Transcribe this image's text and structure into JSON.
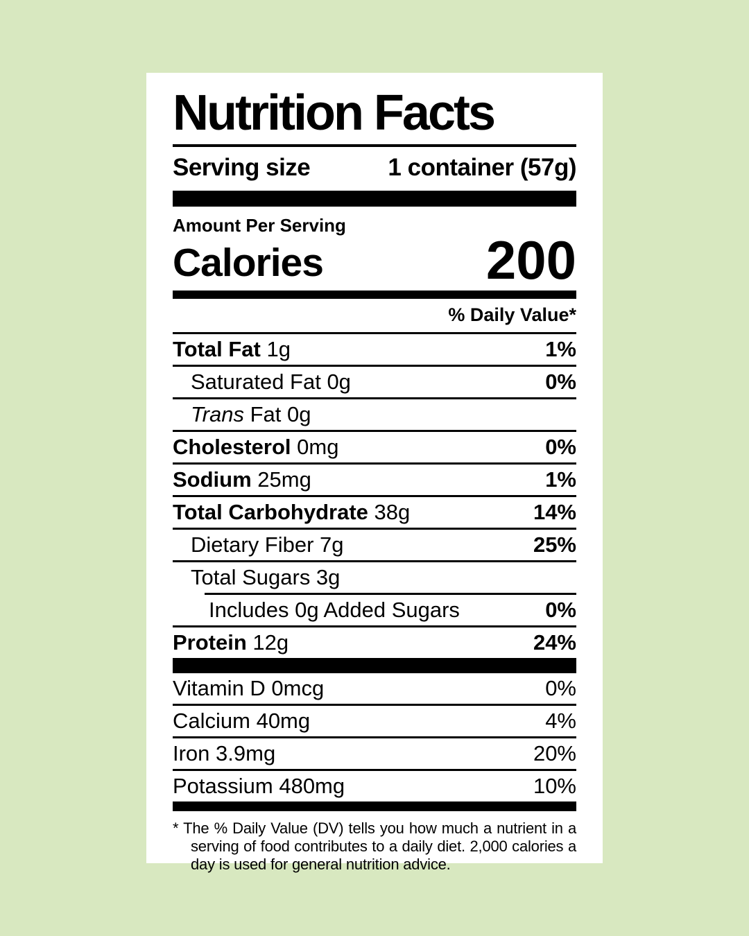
{
  "colors": {
    "background": "#d8e8c0",
    "card": "#ffffff",
    "text": "#000000"
  },
  "label": {
    "title": "Nutrition Facts",
    "serving": {
      "label": "Serving size",
      "value": "1 container (57g)"
    },
    "amount_per_serving": "Amount Per Serving",
    "calories_label": "Calories",
    "calories_value": "200",
    "daily_value_header": "% Daily Value*",
    "nutrient_rows": [
      {
        "lead": "Total Fat",
        "lead_style": "bold",
        "text": " 1g",
        "dv": "1%",
        "indent": 0
      },
      {
        "lead": "",
        "lead_style": "",
        "text": "Saturated Fat 0g",
        "dv": "0%",
        "indent": 1
      },
      {
        "lead": "Trans",
        "lead_style": "italic",
        "text": " Fat 0g",
        "dv": "",
        "indent": 1
      },
      {
        "lead": "Cholesterol",
        "lead_style": "bold",
        "text": " 0mg",
        "dv": "0%",
        "indent": 0
      },
      {
        "lead": "Sodium",
        "lead_style": "bold",
        "text": " 25mg",
        "dv": "1%",
        "indent": 0
      },
      {
        "lead": "Total Carbohydrate",
        "lead_style": "bold",
        "text": " 38g",
        "dv": "14%",
        "indent": 0
      },
      {
        "lead": "",
        "lead_style": "",
        "text": "Dietary Fiber 7g",
        "dv": "25%",
        "indent": 1
      },
      {
        "lead": "",
        "lead_style": "",
        "text": "Total Sugars 3g",
        "dv": "",
        "indent": 1
      },
      {
        "lead": "",
        "lead_style": "",
        "text": "Includes 0g Added Sugars",
        "dv": "0%",
        "indent": 2,
        "divider_indent": true
      },
      {
        "lead": "Protein",
        "lead_style": "bold",
        "text": " 12g",
        "dv": "24%",
        "indent": 0
      }
    ],
    "micronutrients": [
      {
        "text": "Vitamin D 0mcg",
        "dv": "0%"
      },
      {
        "text": "Calcium 40mg",
        "dv": "4%"
      },
      {
        "text": "Iron 3.9mg",
        "dv": "20%"
      },
      {
        "text": "Potassium 480mg",
        "dv": "10%"
      }
    ],
    "footnote_marker": "*",
    "footnote": "The % Daily Value (DV) tells you how much a nutrient in a serving of food contributes to a daily diet. 2,000 calories a day is used for general nutrition advice."
  }
}
